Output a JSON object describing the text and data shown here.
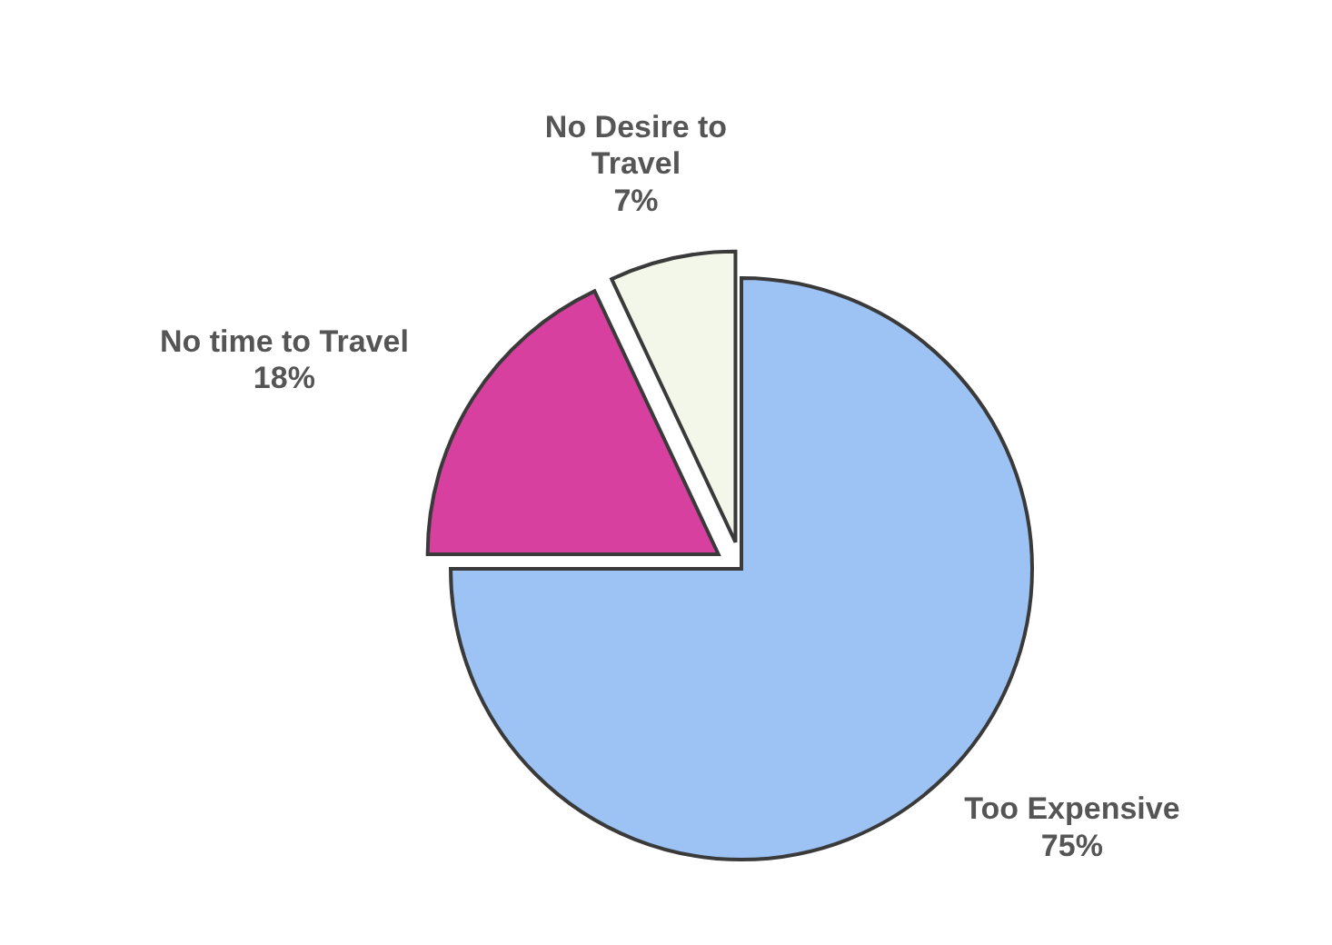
{
  "chart_data": {
    "type": "pie",
    "categories": [
      "Too Expensive",
      "No time to Travel",
      "No Desire to Travel"
    ],
    "values": [
      75,
      18,
      7
    ],
    "colors": [
      "#9cc3f3",
      "#d8409f",
      "#f3f7ea"
    ],
    "value_labels": [
      "75%",
      "18%",
      "7%"
    ]
  }
}
